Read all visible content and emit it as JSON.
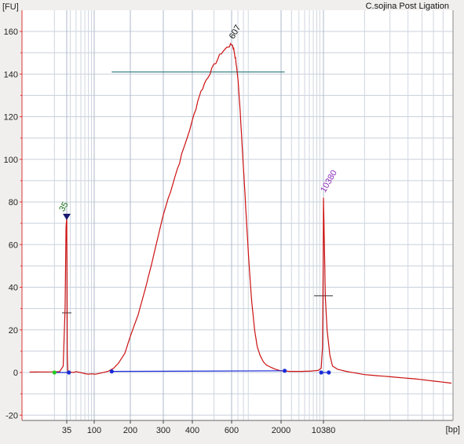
{
  "chart_data": {
    "type": "line",
    "title": "C.sojina Post Ligation",
    "ylabel": "[FU]",
    "xlabel": "[bp]",
    "ylim": [
      -22,
      168
    ],
    "x_ticks": [
      "35",
      "100",
      "200",
      "300",
      "400",
      "600",
      "2000",
      "10380"
    ],
    "y_ticks": [
      -20,
      0,
      20,
      40,
      60,
      80,
      100,
      120,
      140,
      160
    ],
    "grid": true,
    "colors": {
      "trace": "#cc1111",
      "baseline": "#1a2bd6",
      "marker_35": "#1a6e1a",
      "marker_10380": "#8a2ab8",
      "smear_line": "#2e7a7a"
    },
    "peaks": [
      {
        "label": "35",
        "bp": 35,
        "fu": 73,
        "color": "#1a6e1a"
      },
      {
        "label": "607",
        "bp": 607,
        "fu": 154,
        "color": "#111111"
      },
      {
        "label": "10380",
        "bp": 10380,
        "fu": 82,
        "color": "#8a2ab8"
      }
    ],
    "series": [
      {
        "values": [
          [
            22,
            0.2
          ],
          [
            29,
            0.3
          ],
          [
            32,
            0.4
          ],
          [
            33.5,
            3
          ],
          [
            34.3,
            30
          ],
          [
            34.7,
            68
          ],
          [
            35,
            73
          ],
          [
            35.3,
            55
          ],
          [
            35.7,
            10
          ],
          [
            36.5,
            0.5
          ],
          [
            40,
            0.2
          ],
          [
            45,
            0.0
          ],
          [
            50,
            0.4
          ],
          [
            58,
            0.0
          ],
          [
            70,
            -0.5
          ],
          [
            80,
            -0.8
          ],
          [
            90,
            -0.6
          ],
          [
            102,
            -0.8
          ],
          [
            115,
            -0.2
          ],
          [
            130,
            0.5
          ],
          [
            145,
            2.0
          ],
          [
            160,
            4.5
          ],
          [
            180,
            9
          ],
          [
            200,
            17
          ],
          [
            220,
            27
          ],
          [
            240,
            39
          ],
          [
            260,
            51
          ],
          [
            280,
            63
          ],
          [
            300,
            74
          ],
          [
            330,
            89
          ],
          [
            360,
            102
          ],
          [
            400,
            118
          ],
          [
            430,
            130
          ],
          [
            460,
            137
          ],
          [
            500,
            144
          ],
          [
            540,
            150
          ],
          [
            580,
            153
          ],
          [
            607,
            154
          ],
          [
            630,
            152
          ],
          [
            660,
            147
          ],
          [
            700,
            138
          ],
          [
            740,
            122
          ],
          [
            780,
            105
          ],
          [
            820,
            88
          ],
          [
            870,
            68
          ],
          [
            920,
            50
          ],
          [
            980,
            33
          ],
          [
            1050,
            20
          ],
          [
            1120,
            12
          ],
          [
            1200,
            8
          ],
          [
            1300,
            5
          ],
          [
            1400,
            3.5
          ],
          [
            1550,
            2.5
          ],
          [
            1750,
            1.5
          ],
          [
            2000,
            0.8
          ],
          [
            2800,
            0.5
          ],
          [
            4000,
            0.5
          ],
          [
            6000,
            0.6
          ],
          [
            8500,
            1
          ],
          [
            9500,
            2
          ],
          [
            10000,
            12
          ],
          [
            10250,
            50
          ],
          [
            10380,
            82
          ],
          [
            10500,
            65
          ],
          [
            10700,
            35
          ],
          [
            11000,
            20
          ],
          [
            11500,
            8
          ],
          [
            12000,
            3
          ],
          [
            13000,
            1.5
          ],
          [
            15000,
            0.5
          ],
          [
            20000,
            -1
          ],
          [
            30000,
            -2
          ],
          [
            45000,
            -3
          ],
          [
            60000,
            -4
          ],
          [
            80000,
            -5
          ]
        ]
      }
    ],
    "baseline_segments": [
      {
        "x": [
          30,
          38
        ],
        "y": [
          0,
          0
        ]
      },
      {
        "x": [
          140,
          2300
        ],
        "y": [
          0.5,
          0.8
        ]
      },
      {
        "x": [
          9500,
          11300
        ],
        "y": [
          0,
          0
        ]
      }
    ],
    "markers": [
      {
        "bp": 30,
        "fu": 0,
        "color": "#22cc22"
      },
      {
        "bp": 38,
        "fu": 0,
        "color": "#1a2bd6"
      },
      {
        "bp": 140,
        "fu": 0.5,
        "color": "#1a2bd6"
      },
      {
        "bp": 2300,
        "fu": 0.8,
        "color": "#1a2bd6"
      },
      {
        "bp": 9500,
        "fu": 0,
        "color": "#1a2bd6"
      },
      {
        "bp": 11300,
        "fu": 0,
        "color": "#1a2bd6"
      }
    ],
    "smear_region": {
      "from_bp": 140,
      "to_bp": 2300,
      "fu": 141
    },
    "region_ticks": [
      {
        "bp": 35,
        "fu": 28
      },
      {
        "bp": 10380,
        "fu": 36
      }
    ]
  }
}
